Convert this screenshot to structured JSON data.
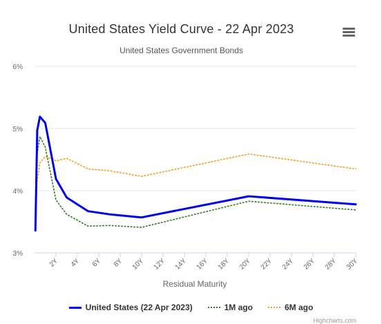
{
  "chart_data": {
    "type": "line",
    "title": "United States Yield Curve - 22 Apr 2023",
    "subtitle": "United States Government Bonds",
    "xlabel": "Residual Maturity",
    "ylabel": "",
    "xlim": [
      0,
      30
    ],
    "ylim": [
      3,
      6
    ],
    "x_ticks": [
      2,
      4,
      6,
      8,
      10,
      12,
      14,
      16,
      18,
      20,
      22,
      24,
      26,
      28,
      30
    ],
    "x_tick_labels": [
      "2Y",
      "4Y",
      "6Y",
      "8Y",
      "10Y",
      "12Y",
      "14Y",
      "16Y",
      "18Y",
      "20Y",
      "22Y",
      "24Y",
      "26Y",
      "28Y",
      "30Y"
    ],
    "y_ticks": [
      3,
      4,
      5,
      6
    ],
    "y_tick_labels": [
      "3%",
      "4%",
      "5%",
      "6%"
    ],
    "grid": true,
    "legend_position": "bottom",
    "series": [
      {
        "name": "United States (22 Apr 2023)",
        "color": "#0000ee",
        "style": "solid",
        "x": [
          0.08,
          0.25,
          0.5,
          1,
          2,
          3,
          5,
          7,
          10,
          20,
          30
        ],
        "y": [
          3.36,
          4.97,
          5.19,
          5.09,
          4.19,
          3.89,
          3.67,
          3.62,
          3.57,
          3.91,
          3.78
        ]
      },
      {
        "name": "1M ago",
        "color": "#2a7a1f",
        "style": "dotted",
        "x": [
          0.08,
          0.25,
          0.5,
          1,
          2,
          3,
          5,
          7,
          10,
          20,
          30
        ],
        "y": [
          3.5,
          4.6,
          4.87,
          4.7,
          3.85,
          3.62,
          3.43,
          3.44,
          3.41,
          3.83,
          3.69
        ]
      },
      {
        "name": "6M ago",
        "color": "#f39c1a",
        "style": "dotted",
        "x": [
          0.08,
          0.25,
          0.5,
          1,
          2,
          3,
          5,
          7,
          10,
          20,
          30
        ],
        "y": [
          3.5,
          4.15,
          4.45,
          4.55,
          4.48,
          4.52,
          4.35,
          4.32,
          4.23,
          4.59,
          4.35
        ]
      }
    ]
  },
  "menu": {
    "icon": "hamburger-menu-icon"
  },
  "credits": "Highcharts.com"
}
